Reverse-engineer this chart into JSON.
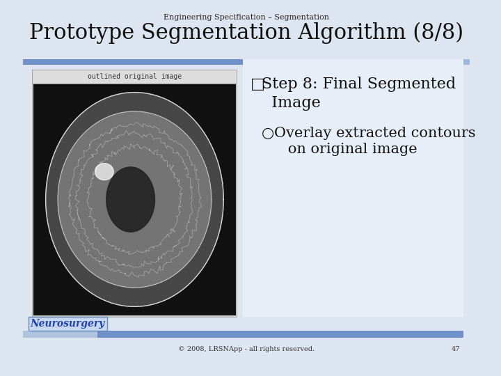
{
  "title_small": "Engineering Specification – Segmentation",
  "title_large": "Prototype Segmentation Algorithm (8/8)",
  "bg_color": "#dde6f0",
  "header_bar_color1": "#7090c8",
  "header_bar_color2": "#a0b8e0",
  "content_bg": "#e8eef8",
  "bullet1": "Step 8: Final Segmented Image",
  "bullet1_marker": "□",
  "bullet2": "Overlay extracted contours\n      on original image",
  "bullet2_marker": "○",
  "footer_text": "© 2008, LRSNApp - all rights reserved.",
  "footer_page": "47",
  "neurosurgery_text": "Neurosurgery",
  "neurosurgery_color": "#2244aa",
  "footer_bar_color": "#7090c8",
  "image_label": "outlined original image",
  "small_title_fontsize": 8,
  "large_title_fontsize": 22,
  "bullet1_fontsize": 16,
  "bullet2_fontsize": 15,
  "footer_fontsize": 7
}
